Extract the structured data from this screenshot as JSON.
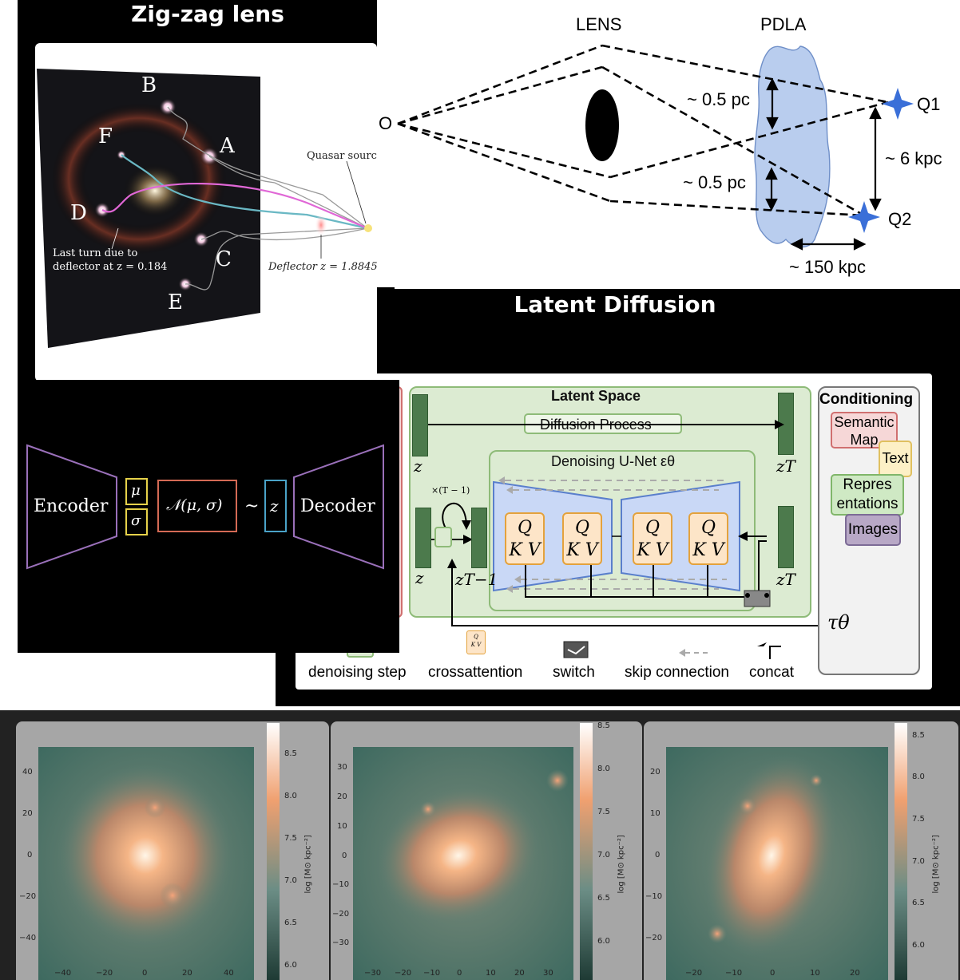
{
  "titles": {
    "zigzag": "Zig-zag lens",
    "latent": "Latent Diffusion"
  },
  "zigzag": {
    "images": [
      "B",
      "F",
      "A",
      "D",
      "C",
      "E"
    ],
    "quasar_source": "Quasar source",
    "deflector": "Deflector z = 1.8845",
    "last_turn_1": "Last turn due to",
    "last_turn_2": "deflector at z = 0.184"
  },
  "pdla": {
    "lens": "LENS",
    "pdla": "PDLA",
    "observer": "O",
    "q1": "Q1",
    "q2": "Q2",
    "sep1": "~ 0.5 pc",
    "sep2": "~ 0.5 pc",
    "kpc6": "~ 6 kpc",
    "kpc150": "~ 150 kpc"
  },
  "vae": {
    "encoder": "Encoder",
    "mu": "μ",
    "sigma": "σ",
    "normal": "𝒩(μ, σ)",
    "tilde": "~",
    "z": "z",
    "decoder": "Decoder"
  },
  "ldm": {
    "latent_space": "Latent Space",
    "diffusion_process": "Diffusion Process",
    "unet": "Denoising U-Net εθ",
    "z_top": "z",
    "zT_top": "zT",
    "z_bottom": "z",
    "zT1": "zT−1",
    "zT_bottom": "zT",
    "times": "×(T − 1)",
    "qkv_q": "Q",
    "qkv_kv": "K V",
    "conditioning": "Conditioning",
    "cond_items": [
      "Semantic Map",
      "Text",
      "Repres entations",
      "Images"
    ],
    "tau": "τθ",
    "legend": {
      "denoising_step": "denoising step",
      "crossattention": "crossattention",
      "switch": "switch",
      "skip_connection": "skip connection",
      "concat": "concat"
    },
    "mini_q": "Q",
    "mini_kv": "K V"
  },
  "maps": {
    "cbar_label": "log [M⊙ kpc⁻²]",
    "panels": [
      {
        "yticks": [
          "40",
          "20",
          "0",
          "−20",
          "−40"
        ],
        "xticks": [
          "−40",
          "−20",
          "0",
          "20",
          "40"
        ],
        "cbticks": [
          "8.5",
          "8.0",
          "7.5",
          "7.0",
          "6.5",
          "6.0"
        ]
      },
      {
        "yticks": [
          "30",
          "20",
          "10",
          "0",
          "−10",
          "−20",
          "−30"
        ],
        "xticks": [
          "−30",
          "−20",
          "−10",
          "0",
          "10",
          "20",
          "30"
        ],
        "cbticks": [
          "8.5",
          "8.0",
          "7.5",
          "7.0",
          "6.5",
          "6.0"
        ]
      },
      {
        "yticks": [
          "20",
          "10",
          "0",
          "−10",
          "−20"
        ],
        "xticks": [
          "−20",
          "−10",
          "0",
          "10",
          "20"
        ],
        "cbticks": [
          "8.5",
          "8.0",
          "7.5",
          "7.0",
          "6.5",
          "6.0"
        ]
      }
    ]
  },
  "colors": {
    "background_dark": "#000000",
    "accent_blue": "#3a6fd8",
    "accent_green": "#4c7a4c",
    "accent_orange": "#e4a23c",
    "accent_purple": "#b07cc6",
    "map_teal": "#5a7d72",
    "map_core": "#fff4e6"
  }
}
